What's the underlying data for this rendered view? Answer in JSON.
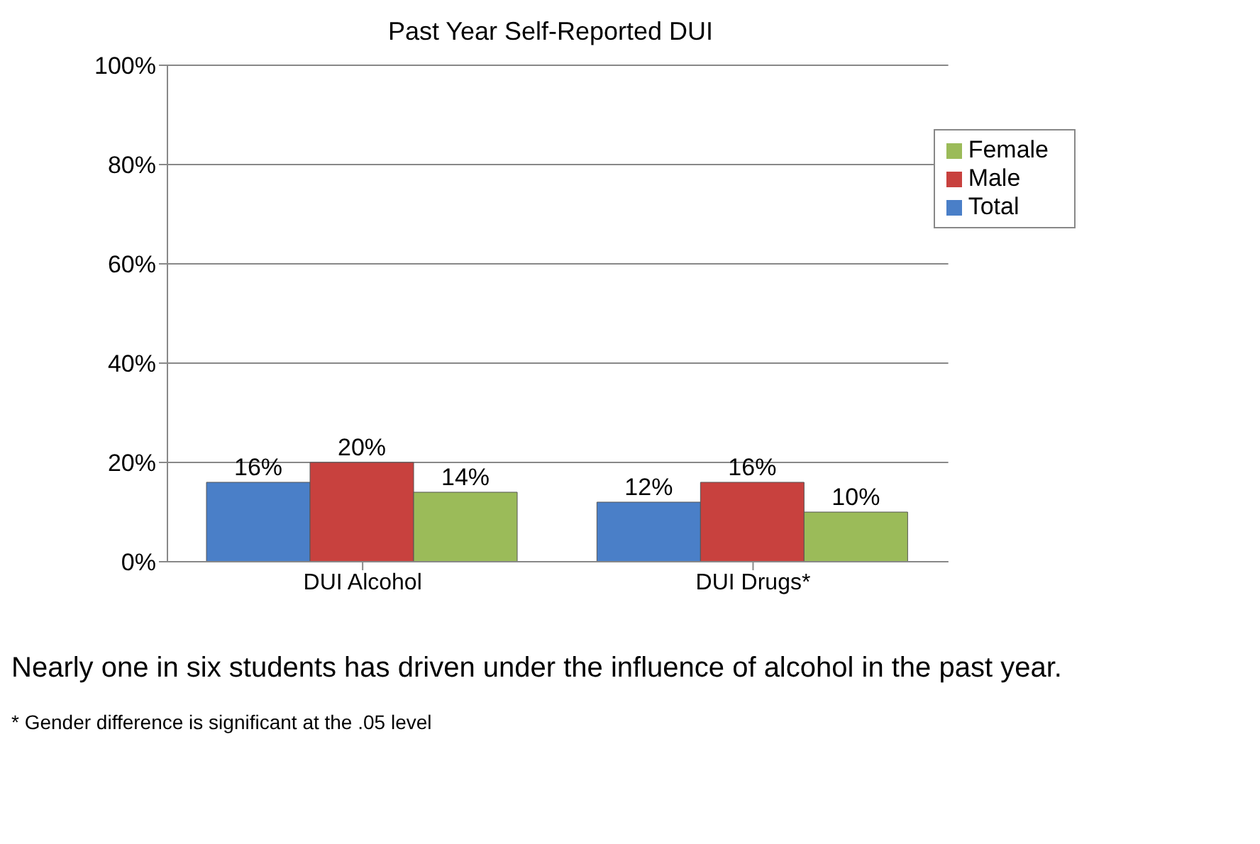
{
  "chart_data": {
    "type": "bar",
    "title": "Past Year Self-Reported DUI",
    "categories": [
      "DUI Alcohol",
      "DUI Drugs*"
    ],
    "series": [
      {
        "name": "Total",
        "color": "#4a7fc8",
        "values": [
          16,
          12
        ],
        "value_labels": [
          "16%",
          "12%"
        ]
      },
      {
        "name": "Male",
        "color": "#c8413e",
        "values": [
          20,
          16
        ],
        "value_labels": [
          "20%",
          "16%"
        ]
      },
      {
        "name": "Female",
        "color": "#9bbb59",
        "values": [
          14,
          10
        ],
        "value_labels": [
          "14%",
          "10%"
        ]
      }
    ],
    "ylim": [
      0,
      100
    ],
    "yticks": [
      {
        "value": 0,
        "label": "0%"
      },
      {
        "value": 20,
        "label": "20%"
      },
      {
        "value": 40,
        "label": "40%"
      },
      {
        "value": 60,
        "label": "60%"
      },
      {
        "value": 80,
        "label": "80%"
      },
      {
        "value": 100,
        "label": "100%"
      }
    ],
    "grid": "y",
    "legend": "top right",
    "annotations": [
      "Nearly one in six students has driven under the influence of alcohol in the past year.",
      "* Gender difference is significant at the .05 level"
    ]
  }
}
